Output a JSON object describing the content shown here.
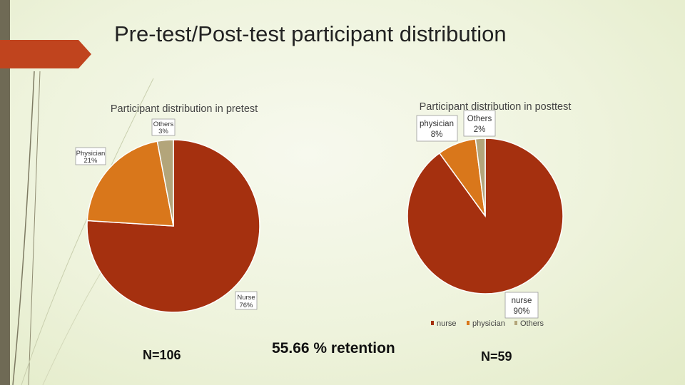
{
  "slide": {
    "title": "Pre-test/Post-test participant distribution",
    "n_pretest": "N=106",
    "retention": "55.66 % retention",
    "n_posttest": "N=59",
    "colors": {
      "accent": "#c0441e",
      "sidebar": "#6f6a55"
    }
  },
  "chart_data": [
    {
      "type": "pie",
      "title": "Participant distribution in pretest",
      "categories": [
        "Nurse",
        "Physician",
        "Others"
      ],
      "values": [
        76,
        21,
        3
      ],
      "value_labels": [
        "76%",
        "21%",
        "3%"
      ],
      "colors": [
        "#a5300f",
        "#d9771b",
        "#b3a57a"
      ],
      "legend": null
    },
    {
      "type": "pie",
      "title": "Participant distribution in posttest",
      "categories": [
        "nurse",
        "physician",
        "Others"
      ],
      "values": [
        90,
        8,
        2
      ],
      "value_labels": [
        "90%",
        "8%",
        "2%"
      ],
      "colors": [
        "#a5300f",
        "#d9771b",
        "#b3a57a"
      ],
      "legend": {
        "position": "bottom",
        "entries": [
          "nurse",
          "physician",
          "Others"
        ]
      }
    }
  ]
}
